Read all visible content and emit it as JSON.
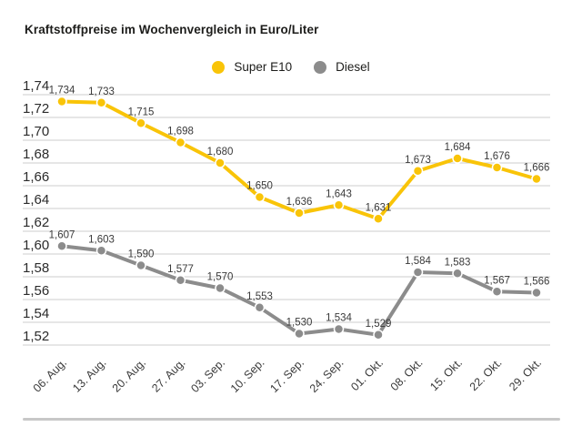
{
  "title": "Kraftstoffpreise im Wochenvergleich in Euro/Liter",
  "chart_data": {
    "type": "line",
    "categories": [
      "06. Aug.",
      "13. Aug.",
      "20. Aug.",
      "27. Aug.",
      "03. Sep.",
      "10. Sep.",
      "17. Sep.",
      "24. Sep.",
      "01. Okt.",
      "08. Okt.",
      "15. Okt.",
      "22. Okt.",
      "29. Okt."
    ],
    "series": [
      {
        "name": "Super E10",
        "color": "#F9C408",
        "values": [
          1.734,
          1.733,
          1.715,
          1.698,
          1.68,
          1.65,
          1.636,
          1.643,
          1.631,
          1.673,
          1.684,
          1.676,
          1.666
        ]
      },
      {
        "name": "Diesel",
        "color": "#8C8C8C",
        "values": [
          1.607,
          1.603,
          1.59,
          1.577,
          1.57,
          1.553,
          1.53,
          1.534,
          1.529,
          1.584,
          1.583,
          1.567,
          1.566
        ]
      }
    ],
    "title": "Kraftstoffpreise im Wochenvergleich in Euro/Liter",
    "xlabel": "",
    "ylabel": "",
    "ylim": [
      1.52,
      1.74
    ],
    "ytick_step": 0.02,
    "ytick_labels": [
      "1,52",
      "1,54",
      "1,56",
      "1,58",
      "1,60",
      "1,62",
      "1,64",
      "1,66",
      "1,68",
      "1,70",
      "1,72",
      "1,74"
    ],
    "grid": true,
    "legend_position": "top-center",
    "value_labels": true,
    "decimal_separator": ","
  },
  "colors": {
    "background": "#FFFFFF",
    "gridline": "#CCCCCC",
    "y_tick_text": "#2B2B2B",
    "x_tick_text": "#3A3A3A",
    "value_label_text": "#3A3A3A",
    "title_text": "#1D1D1B",
    "bottom_rule": "#C8C8C8",
    "dot_outline": "#FFFFFF"
  }
}
